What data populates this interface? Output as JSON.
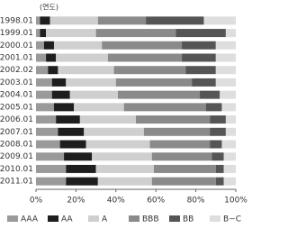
{
  "chart_data": {
    "type": "stacked-barh",
    "y_label": "(연도)",
    "categories": [
      "1998.01",
      "1999.01",
      "2000.01",
      "2001.01",
      "2002.02",
      "2003.01",
      "2004.01",
      "2005.01",
      "2006.01",
      "2007.01",
      "2008.01",
      "2009.01",
      "2010.01",
      "2011.01"
    ],
    "series": [
      {
        "name": "AAA",
        "color": "#9a9a9a",
        "values": [
          2,
          2,
          4,
          5,
          6,
          8,
          8,
          9,
          10,
          11,
          12,
          14,
          15,
          15
        ]
      },
      {
        "name": "AA",
        "color": "#1e1e1e",
        "values": [
          5,
          3,
          5,
          5,
          5,
          7,
          9,
          10,
          12,
          13,
          13,
          14,
          15,
          16
        ]
      },
      {
        "name": "A",
        "color": "#cfcfcf",
        "values": [
          24,
          25,
          24,
          26,
          28,
          25,
          24,
          25,
          28,
          30,
          32,
          30,
          29,
          27
        ]
      },
      {
        "name": "BBB",
        "color": "#8a8a8a",
        "values": [
          24,
          40,
          40,
          37,
          36,
          38,
          41,
          41,
          37,
          33,
          30,
          30,
          31,
          32
        ]
      },
      {
        "name": "BB",
        "color": "#555555",
        "values": [
          29,
          25,
          17,
          17,
          15,
          12,
          10,
          8,
          8,
          8,
          6,
          6,
          4,
          4
        ]
      },
      {
        "name": "B~C",
        "color": "#dedede",
        "values": [
          16,
          5,
          10,
          10,
          10,
          10,
          8,
          7,
          5,
          5,
          7,
          6,
          6,
          6
        ]
      }
    ],
    "xlim": [
      0,
      100
    ],
    "xticks": [
      {
        "value": 0,
        "label": "0%"
      },
      {
        "value": 20,
        "label": "20%"
      },
      {
        "value": 40,
        "label": "40%"
      },
      {
        "value": 60,
        "label": "60%"
      },
      {
        "value": 80,
        "label": "80%"
      },
      {
        "value": 100,
        "label": "100%"
      }
    ]
  }
}
